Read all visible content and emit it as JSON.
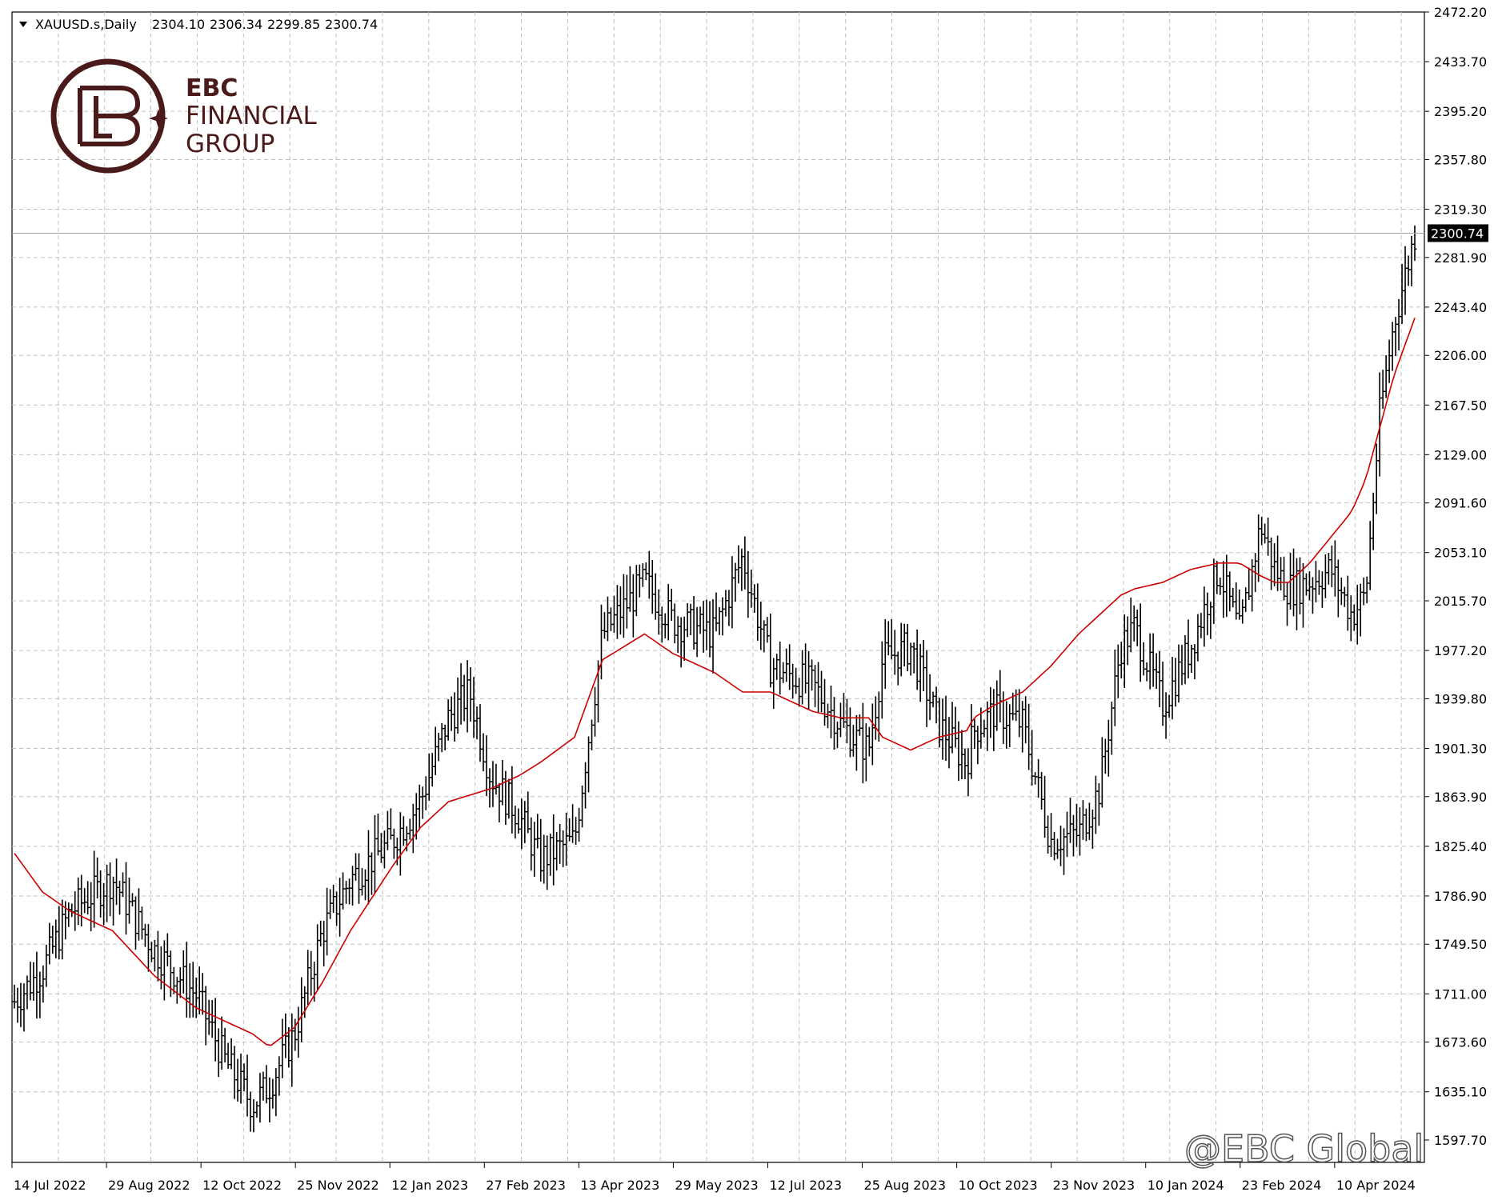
{
  "header": {
    "symbol": "XAUUSD.s,Daily",
    "open": "2304.10",
    "high": "2306.34",
    "low": "2299.85",
    "close": "2300.74"
  },
  "logo": {
    "line1": "EBC",
    "line2": "FINANCIAL",
    "line3": "GROUP",
    "color": "#4a1a1a"
  },
  "watermark": "@EBC Global",
  "colors": {
    "bars": "#000000",
    "ma": "#cc0000",
    "grid": "#c0c0c0",
    "current_line": "#a0a0a0"
  },
  "chart_data": {
    "type": "ohlc-bar",
    "ylim": [
      1597.7,
      2472.2
    ],
    "y_ticks": [
      "2472.20",
      "2433.70",
      "2395.20",
      "2357.80",
      "2319.30",
      "2281.90",
      "2243.40",
      "2206.00",
      "2167.50",
      "2129.00",
      "2091.60",
      "2053.10",
      "2015.70",
      "1977.20",
      "1939.80",
      "1901.30",
      "1863.90",
      "1825.40",
      "1786.90",
      "1749.50",
      "1711.00",
      "1673.60",
      "1635.10",
      "1597.70"
    ],
    "x_ticks": [
      "14 Jul 2022",
      "29 Aug 2022",
      "12 Oct 2022",
      "25 Nov 2022",
      "12 Jan 2023",
      "27 Feb 2023",
      "13 Apr 2023",
      "29 May 2023",
      "12 Jul 2023",
      "25 Aug 2023",
      "10 Oct 2023",
      "23 Nov 2023",
      "10 Jan 2024",
      "23 Feb 2024",
      "10 Apr 2024"
    ],
    "current_price": "2300.74",
    "anchors": {
      "x": [
        0,
        0.02,
        0.04,
        0.07,
        0.1,
        0.13,
        0.15,
        0.17,
        0.182,
        0.2,
        0.22,
        0.24,
        0.27,
        0.29,
        0.31,
        0.325,
        0.34,
        0.36,
        0.375,
        0.4,
        0.42,
        0.45,
        0.47,
        0.5,
        0.52,
        0.54,
        0.57,
        0.59,
        0.61,
        0.62,
        0.64,
        0.66,
        0.68,
        0.685,
        0.7,
        0.72,
        0.74,
        0.76,
        0.775,
        0.79,
        0.8,
        0.82,
        0.84,
        0.86,
        0.875,
        0.89,
        0.9,
        0.91,
        0.925,
        0.94,
        0.955,
        0.965,
        0.975,
        0.985,
        1.0
      ],
      "close": [
        1705,
        1730,
        1775,
        1800,
        1745,
        1710,
        1660,
        1625,
        1640,
        1680,
        1760,
        1800,
        1830,
        1860,
        1925,
        1945,
        1880,
        1850,
        1815,
        1830,
        1990,
        2030,
        2000,
        1990,
        2050,
        1965,
        1950,
        1920,
        1900,
        1970,
        1980,
        1920,
        1890,
        1915,
        1930,
        1920,
        1830,
        1835,
        1870,
        1980,
        1995,
        1935,
        1980,
        2040,
        1990,
        2075,
        2040,
        2025,
        2030,
        2040,
        2005,
        2020,
        2160,
        2230,
        2300
      ],
      "ma": [
        1820,
        1790,
        1775,
        1760,
        1725,
        1700,
        1690,
        1680,
        1670,
        1685,
        1720,
        1760,
        1810,
        1840,
        1860,
        1865,
        1870,
        1880,
        1890,
        1910,
        1970,
        1990,
        1975,
        1960,
        1945,
        1945,
        1930,
        1925,
        1925,
        1910,
        1900,
        1910,
        1915,
        1925,
        1935,
        1945,
        1965,
        1990,
        2005,
        2020,
        2025,
        2030,
        2040,
        2045,
        2045,
        2035,
        2030,
        2030,
        2045,
        2065,
        2085,
        2110,
        2150,
        2190,
        2235
      ]
    }
  }
}
